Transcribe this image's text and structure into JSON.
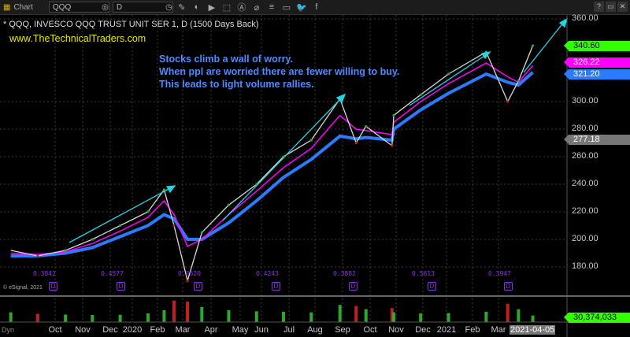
{
  "toolbar": {
    "title": "Chart",
    "symbol": "QQQ",
    "interval": "D",
    "icons": [
      "pencil-icon",
      "line-tool-icon",
      "play-icon",
      "cursor-icon",
      "alert-icon",
      "link-icon",
      "list-icon",
      "comment-icon",
      "twitter-icon",
      "facebook-icon"
    ],
    "window_buttons": [
      "?",
      "▭",
      "✕"
    ]
  },
  "header": {
    "title": "* QQQ, INVESCO QQQ TRUST UNIT SER 1, D (1500 Days Back)",
    "website": "www.TheTechnicalTraders.com"
  },
  "annotation": [
    "Stocks climb a wall of worry.",
    "When ppl are worried there are fewer willing to buy.",
    "This leads to light volume rallies."
  ],
  "copyright": "© eSignal, 2021",
  "dyn_label": "Dyn",
  "colors": {
    "price_tag": "#33ff00",
    "ma_fast": "#ff00ff",
    "ma_slow": "#2b7bff",
    "arrow": "#22d6e6",
    "volume_avg": "#2aa8ff",
    "up": "#2ea82e",
    "down": "#c02020",
    "dividend": "#9030e0",
    "annotation": "#4a8cff",
    "website": "#e8e800"
  },
  "price_tags": [
    {
      "value": "340.60",
      "color": "#33ff00",
      "text": "#000"
    },
    {
      "value": "326.22",
      "color": "#ff00ff",
      "text": "#fff"
    },
    {
      "value": "321.20",
      "color": "#2b7bff",
      "text": "#fff"
    },
    {
      "value": "277.18",
      "color": "#777777",
      "text": "#fff"
    }
  ],
  "volume_tag": "30,374,033",
  "dividends": [
    {
      "label": "0.3842",
      "icon": "D"
    },
    {
      "label": "0.4577",
      "icon": "D"
    },
    {
      "label": "0.3620",
      "icon": "D"
    },
    {
      "label": "0.4243",
      "icon": "D"
    },
    {
      "label": "0.3882",
      "icon": "D"
    },
    {
      "label": "0.5613",
      "icon": "D"
    },
    {
      "label": "0.3947",
      "icon": "D"
    }
  ],
  "chart_data": {
    "type": "line",
    "ylim": [
      165,
      365
    ],
    "yticks": [
      "360.00",
      "300.00",
      "280.00",
      "260.00",
      "240.00",
      "220.00",
      "200.00",
      "180.00"
    ],
    "xticks": [
      "Oct",
      "Nov",
      "Dec",
      "2020",
      "Feb",
      "Mar",
      "Apr",
      "May",
      "Jun",
      "Jul",
      "Aug",
      "Sep",
      "Oct",
      "Nov",
      "Dec",
      "2021",
      "Feb",
      "Mar"
    ],
    "current_date": "2021-04-05",
    "grid": true,
    "x": [
      "2019-09",
      "2019-10",
      "2019-11",
      "2019-12",
      "2020-01",
      "2020-02",
      "2020-02-19",
      "2020-03-01",
      "2020-03-16",
      "2020-04",
      "2020-05",
      "2020-06",
      "2020-07",
      "2020-08",
      "2020-09-02",
      "2020-09-20",
      "2020-10",
      "2020-10-30",
      "2020-11",
      "2020-12",
      "2021-01",
      "2021-02-12",
      "2021-03-08",
      "2021-03-20",
      "2021-04-05"
    ],
    "series": [
      {
        "name": "QQQ",
        "values": [
          192,
          188,
          192,
          200,
          210,
          220,
          236,
          210,
          170,
          205,
          225,
          240,
          260,
          272,
          302,
          270,
          282,
          268,
          290,
          305,
          320,
          336,
          300,
          315,
          340.6
        ]
      },
      {
        "name": "MA fast",
        "values": [
          190,
          189,
          191,
          197,
          206,
          216,
          228,
          218,
          195,
          200,
          218,
          235,
          252,
          266,
          290,
          280,
          279,
          276,
          285,
          300,
          313,
          328,
          318,
          314,
          326.22
        ]
      },
      {
        "name": "MA slow",
        "values": [
          188,
          188,
          190,
          194,
          202,
          210,
          218,
          215,
          200,
          200,
          212,
          228,
          245,
          258,
          275,
          273,
          274,
          272,
          280,
          294,
          306,
          320,
          314,
          312,
          321.2
        ]
      }
    ],
    "volume_millions": [
      45,
      38,
      35,
      33,
      34,
      40,
      55,
      100,
      95,
      70,
      55,
      50,
      48,
      45,
      80,
      75,
      60,
      65,
      45,
      40,
      42,
      48,
      85,
      60,
      30.374
    ]
  }
}
